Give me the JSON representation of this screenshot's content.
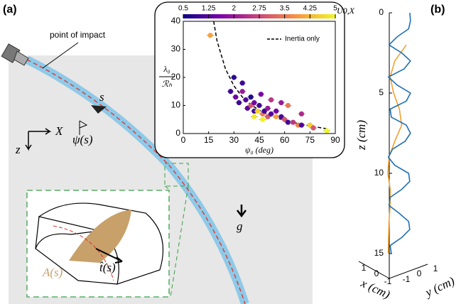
{
  "figure": {
    "panel_a": "(a)",
    "panel_b": "(b)",
    "point_of_impact": "point of impact",
    "arc_length": "s",
    "angle": "ψ(s)",
    "axis_X": "X",
    "axis_z": "z",
    "gravity": "g",
    "tangent": "t̂(s)",
    "area": "A(s)"
  },
  "chart_data": [
    {
      "type": "scatter",
      "ylabel": {
        "numerator": "λ₀",
        "denominator": "ℛₕ"
      },
      "xlabel": "ψ₀ (deg)",
      "xlim": [
        0,
        90
      ],
      "xticks": [
        0,
        15,
        30,
        45,
        60,
        75,
        90
      ],
      "ylim": [
        0,
        40
      ],
      "yticks": [
        0,
        10,
        20,
        30,
        40
      ],
      "colorbar": {
        "label": "U0,X",
        "lim": [
          0.5,
          5
        ],
        "ticks": [
          0.5,
          1.25,
          2,
          2.75,
          3.5,
          4.25,
          5
        ]
      },
      "points": {
        "x": [
          16,
          30,
          28,
          31,
          33,
          35,
          35,
          37,
          38,
          40,
          40,
          42,
          42,
          44,
          45,
          46,
          47,
          48,
          50,
          50,
          52,
          52,
          55,
          55,
          58,
          58,
          60,
          62,
          62,
          65,
          68,
          70,
          70,
          75,
          77,
          85,
          42,
          47
        ],
        "y": [
          35,
          20,
          15,
          13,
          11,
          15,
          18,
          12,
          9,
          10,
          13,
          8,
          11,
          8,
          10,
          14,
          7,
          8,
          9,
          6,
          7,
          12,
          8,
          6,
          6,
          11,
          5,
          4,
          10,
          4,
          3,
          3,
          7,
          3,
          2,
          1,
          6,
          5
        ],
        "u": [
          4,
          0.8,
          1,
          1.5,
          1,
          2,
          1,
          1.2,
          1.3,
          3,
          0.7,
          1,
          1.5,
          4.5,
          1,
          1.6,
          3.5,
          1,
          2,
          3,
          1.2,
          2.5,
          1.5,
          4,
          1.1,
          2,
          3,
          1,
          3.5,
          2.5,
          3.6,
          1.2,
          2.3,
          4.5,
          3,
          5,
          4.8,
          4.9
        ]
      },
      "series": [
        {
          "name": "Inertia only",
          "color": "#000000",
          "x": [
            18,
            20,
            25,
            30,
            35,
            40,
            45,
            50,
            55,
            60,
            65,
            70,
            75,
            80,
            85
          ],
          "values": [
            40,
            33,
            23,
            17,
            13,
            10.3,
            8.3,
            6.8,
            5.6,
            4.7,
            3.9,
            3.3,
            2.7,
            2.2,
            1.7
          ]
        }
      ]
    },
    {
      "type": "line",
      "ylabel": "z (cm)",
      "ylim": [
        0,
        15
      ],
      "yticks": [
        0,
        5,
        10,
        15
      ],
      "xlim": [
        -1,
        1
      ],
      "x_axis": {
        "label": "x (cm)",
        "ticks": [
          1,
          0,
          -1
        ]
      },
      "y_axis": {
        "label": "y (cm)",
        "ticks": [
          -1,
          0,
          1
        ]
      },
      "series": [
        {
          "color": "#1f6fb4",
          "z": [
            0,
            0.5,
            1,
            1.5,
            2,
            2.5,
            3,
            3.5,
            4,
            4.5,
            5,
            5.5,
            6,
            6.5,
            7,
            7.5,
            8,
            8.5,
            9,
            9.5,
            10,
            10.5,
            11,
            11.5,
            12,
            12.5,
            13,
            13.5,
            14,
            14.5,
            15
          ],
          "values": [
            0.75,
            0.78,
            0.7,
            0.2,
            -0.15,
            0.4,
            0.78,
            0.5,
            -0.18,
            0.2,
            0.78,
            0.6,
            -0.1,
            -0.05,
            0.6,
            0.78,
            0.55,
            0,
            -0.18,
            0.1,
            0.7,
            0.75,
            0.4,
            -0.1,
            -0.15,
            0.3,
            0.7,
            0.75,
            0.4,
            -0.1,
            -0.05
          ]
        },
        {
          "color": "#f0a030",
          "z": [
            2,
            3,
            4,
            5,
            6,
            7,
            8,
            9,
            10,
            11,
            12,
            13,
            14,
            15
          ],
          "values": [
            0.6,
            0.1,
            -0.1,
            0.05,
            0.3,
            0.4,
            0.1,
            -0.15,
            -0.2,
            -0.1,
            -0.1,
            -0.15,
            -0.17,
            -0.18
          ]
        }
      ]
    }
  ]
}
